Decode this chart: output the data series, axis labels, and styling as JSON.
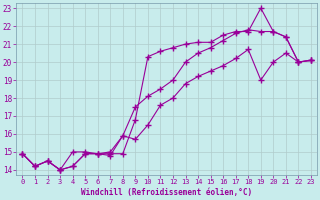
{
  "xlabel": "Windchill (Refroidissement éolien,°C)",
  "bg_color": "#c8ecec",
  "line_color": "#990099",
  "grid_color": "#b0cccc",
  "xlim": [
    -0.5,
    23.5
  ],
  "ylim": [
    13.7,
    23.3
  ],
  "xticks": [
    0,
    1,
    2,
    3,
    4,
    5,
    6,
    7,
    8,
    9,
    10,
    11,
    12,
    13,
    14,
    15,
    16,
    17,
    18,
    19,
    20,
    21,
    22,
    23
  ],
  "yticks": [
    14,
    15,
    16,
    17,
    18,
    19,
    20,
    21,
    22,
    23
  ],
  "line1_x": [
    0,
    1,
    2,
    3,
    4,
    5,
    6,
    7,
    8,
    9,
    10,
    11,
    12,
    13,
    14,
    15,
    16,
    17,
    18,
    19,
    20,
    21,
    22,
    23
  ],
  "line1_y": [
    14.9,
    14.2,
    14.5,
    14.0,
    14.2,
    14.9,
    14.9,
    14.9,
    14.9,
    16.8,
    20.3,
    20.6,
    20.8,
    21.0,
    21.1,
    21.1,
    21.5,
    21.7,
    21.7,
    23.0,
    21.7,
    21.4,
    20.0,
    20.1
  ],
  "line2_x": [
    0,
    1,
    2,
    3,
    4,
    5,
    6,
    7,
    8,
    9,
    10,
    11,
    12,
    13,
    14,
    15,
    16,
    17,
    18,
    19,
    20,
    21,
    22,
    23
  ],
  "line2_y": [
    14.9,
    14.2,
    14.5,
    14.0,
    15.0,
    15.0,
    14.9,
    15.0,
    15.9,
    17.5,
    18.1,
    18.5,
    19.0,
    20.0,
    20.5,
    20.8,
    21.2,
    21.6,
    21.8,
    21.7,
    21.7,
    21.4,
    20.0,
    20.1
  ],
  "line3_x": [
    0,
    1,
    2,
    3,
    4,
    5,
    6,
    7,
    8,
    9,
    10,
    11,
    12,
    13,
    14,
    15,
    16,
    17,
    18,
    19,
    20,
    21,
    22,
    23
  ],
  "line3_y": [
    14.9,
    14.2,
    14.5,
    14.0,
    14.2,
    14.9,
    14.9,
    14.8,
    15.9,
    15.7,
    16.5,
    17.6,
    18.0,
    18.8,
    19.2,
    19.5,
    19.8,
    20.2,
    20.7,
    19.0,
    20.0,
    20.5,
    20.0,
    20.1
  ]
}
